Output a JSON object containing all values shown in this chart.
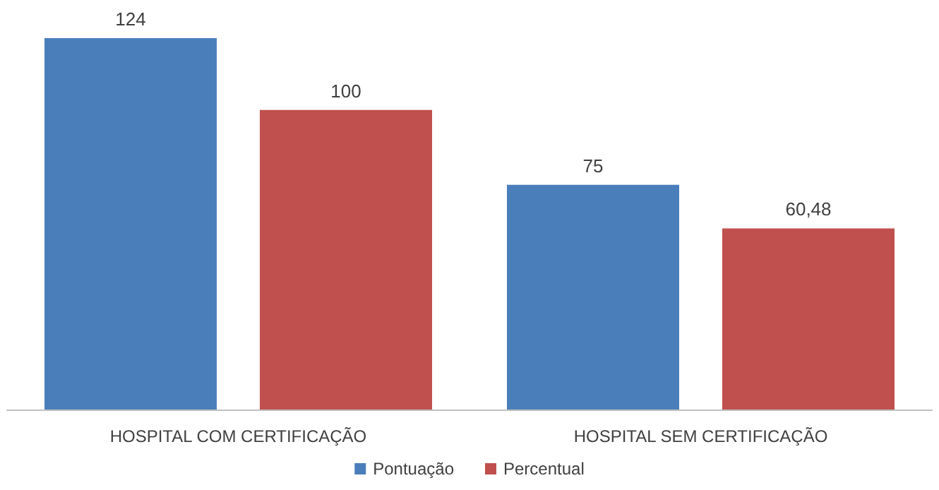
{
  "chart_data": {
    "type": "bar",
    "categories": [
      "HOSPITAL COM CERTIFICAÇÃO",
      "HOSPITAL SEM CERTIFICAÇÃO"
    ],
    "series": [
      {
        "name": "Pontuação",
        "color": "#4a7ebb",
        "values": [
          124,
          75
        ],
        "value_labels": [
          "124",
          "75"
        ]
      },
      {
        "name": "Percentual",
        "color": "#c0504d",
        "values": [
          100,
          60.48
        ],
        "value_labels": [
          "100",
          "60,48"
        ]
      }
    ],
    "legend": "bottom",
    "grid": false
  }
}
